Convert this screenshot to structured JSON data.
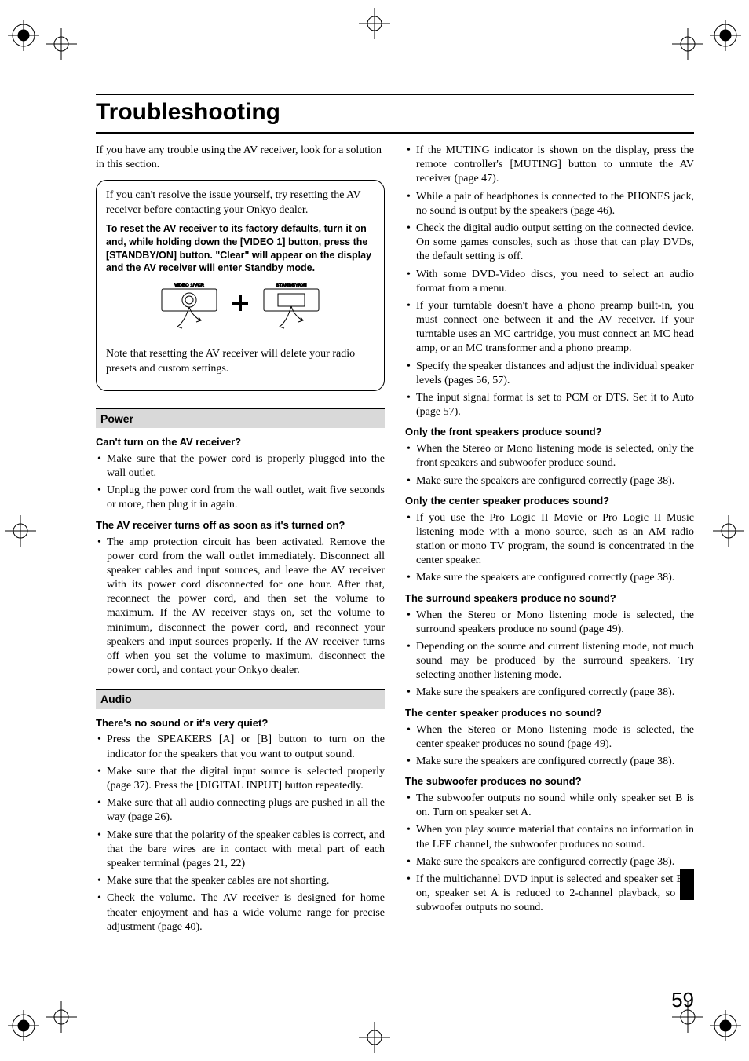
{
  "page": {
    "title": "Troubleshooting",
    "intro": "If you have any trouble using the AV receiver, look for a solution in this section.",
    "number": "59"
  },
  "reset_box": {
    "line1": "If you can't resolve the issue yourself, try resetting the AV receiver before contacting your Onkyo dealer.",
    "bold": "To reset the AV receiver to its factory defaults, turn it on and, while holding down the [VIDEO 1] button, press the [STANDBY/ON] button. \"Clear\" will appear on the display and the AV receiver will enter Standby mode.",
    "diagram": {
      "left_label": "VIDEO 1/VCR",
      "right_label": "STANDBY/ON"
    },
    "note": "Note that resetting the AV receiver will delete your radio presets and custom settings."
  },
  "sections": {
    "power": {
      "header": "Power",
      "q1": {
        "title": "Can't turn on the AV receiver?",
        "items": [
          "Make sure that the power cord is properly plugged into the wall outlet.",
          "Unplug the power cord from the wall outlet, wait five seconds or more, then plug it in again."
        ]
      },
      "q2": {
        "title": "The AV receiver turns off as soon as it's turned on?",
        "items": [
          "The amp protection circuit has been activated. Remove the power cord from the wall outlet immediately. Disconnect all speaker cables and input sources, and leave the AV receiver with its power cord disconnected for one hour. After that, reconnect the power cord, and then set the volume to maximum. If the AV receiver stays on, set the volume to minimum, disconnect the power cord, and reconnect your speakers and input sources properly. If the AV receiver turns off when you set the volume to maximum, disconnect the power cord, and contact your Onkyo dealer."
        ]
      }
    },
    "audio": {
      "header": "Audio",
      "q1": {
        "title": "There's no sound or it's very quiet?",
        "items": [
          "Press the SPEAKERS [A] or [B] button to turn on the indicator for the speakers that you want to output sound.",
          "Make sure that the digital input source is selected properly (page 37). Press the [DIGITAL INPUT] button repeatedly.",
          "Make sure that all audio connecting plugs are pushed in all the way (page 26).",
          "Make sure that the polarity of the speaker cables is correct, and that the bare wires are in contact with metal part of each speaker terminal (pages 21, 22)",
          "Make sure that the speaker cables are not shorting.",
          "Check the volume. The AV receiver is designed for home theater enjoyment and has a wide volume range for precise adjustment (page 40)."
        ]
      },
      "q1b": {
        "items": [
          "If the MUTING indicator is shown on the display, press the remote controller's [MUTING] button to unmute the AV receiver (page 47).",
          "While a pair of headphones is connected to the PHONES jack, no sound is output by the speakers (page 46).",
          "Check the digital audio output setting on the connected device. On some games consoles, such as those that can play DVDs, the default setting is off.",
          "With some DVD-Video discs, you need to select an audio format from a menu.",
          "If your turntable doesn't have a phono preamp built-in, you must connect one between it and the AV receiver. If your turntable uses an MC cartridge, you must connect an MC head amp, or an MC transformer and a phono preamp.",
          "Specify the speaker distances and adjust the individual speaker levels (pages 56, 57).",
          "The input signal format is set to PCM or DTS. Set it to Auto (page 57)."
        ]
      },
      "q2": {
        "title": "Only the front speakers produce sound?",
        "items": [
          "When the Stereo or Mono listening mode is selected, only the front speakers and subwoofer produce sound.",
          "Make sure the speakers are configured correctly (page 38)."
        ]
      },
      "q3": {
        "title": "Only the center speaker produces sound?",
        "items": [
          "If you use the Pro Logic II Movie or Pro Logic II Music listening mode with a mono source, such as an AM radio station or mono TV program, the sound is concentrated in the center speaker.",
          "Make sure the speakers are configured correctly (page 38)."
        ]
      },
      "q4": {
        "title": "The surround speakers produce no sound?",
        "items": [
          "When the Stereo or Mono listening mode is selected, the surround speakers produce no sound (page 49).",
          "Depending on the source and current listening mode, not much sound may be produced by the surround speakers. Try selecting another listening mode.",
          "Make sure the speakers are configured correctly (page 38)."
        ]
      },
      "q5": {
        "title": "The center speaker produces no sound?",
        "items": [
          "When the Stereo or Mono listening mode is selected, the center speaker produces no sound (page 49).",
          "Make sure the speakers are configured correctly (page 38)."
        ]
      },
      "q6": {
        "title": "The subwoofer produces no sound?",
        "items": [
          "The subwoofer outputs no sound while only speaker set B is on. Turn on speaker set A.",
          "When you play source material that contains no information in the LFE channel, the subwoofer produces no sound.",
          "Make sure the speakers are configured correctly (page 38).",
          "If the multichannel DVD input is selected and speaker set B is on, speaker set A is reduced to 2-channel playback, so the subwoofer outputs no sound."
        ]
      }
    }
  },
  "style": {
    "page_bg": "#ffffff",
    "text_color": "#000000",
    "section_bg": "#d9d9d9",
    "title_fontsize_pt": 30,
    "body_fontsize_pt": 14
  }
}
